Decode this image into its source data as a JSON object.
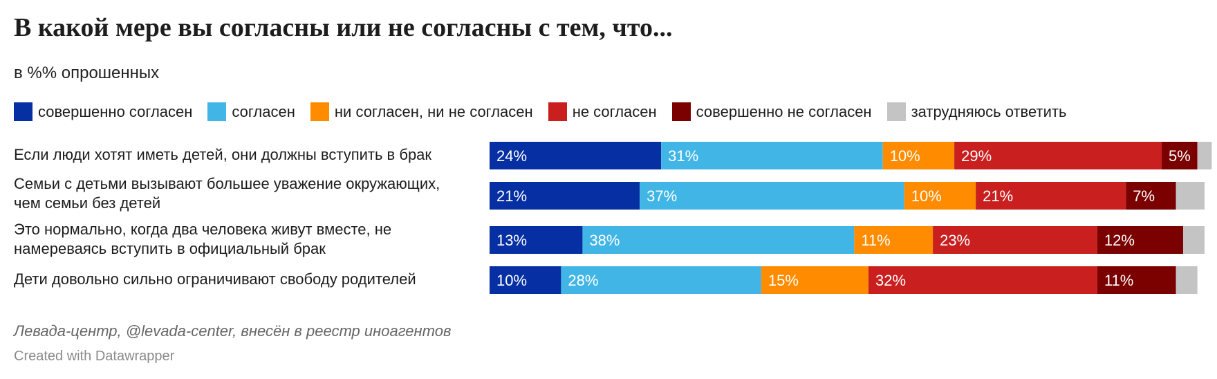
{
  "title": "В какой мере вы согласны или не согласны с тем, что...",
  "subtitle": "в %% опрошенных",
  "source": "Левада-центр, @levada-center, внесён в реестр иноагентов",
  "credit": "Created with Datawrapper",
  "chart_data": {
    "type": "bar",
    "orientation": "horizontal",
    "stacked": true,
    "unit": "%",
    "xlim": [
      0,
      100
    ],
    "legend_position": "top",
    "categories": [
      "Если люди хотят иметь детей, они должны вступить в брак",
      "Семьи с детьми вызывают большее уважение окружающих, чем семьи без детей",
      "Это нормально, когда два человека живут вместе, не намереваясь вступить в официальный брак",
      "Дети довольно сильно ограничивают свободу родителей"
    ],
    "category_lines": [
      [
        "Если люди хотят иметь детей, они должны вступить в брак"
      ],
      [
        "Семьи с детьми вызывают большее уважение окружающих,",
        "чем семьи без детей"
      ],
      [
        "Это нормально, когда два человека живут вместе, не",
        "намереваясь вступить в официальный брак"
      ],
      [
        "Дети довольно сильно ограничивают свободу родителей"
      ]
    ],
    "series": [
      {
        "name": "совершенно согласен",
        "color": "#052fa3",
        "values": [
          24,
          21,
          13,
          10
        ]
      },
      {
        "name": "согласен",
        "color": "#41b6e6",
        "values": [
          31,
          37,
          38,
          28
        ]
      },
      {
        "name": "ни согласен, ни не согласен",
        "color": "#ff8c00",
        "values": [
          10,
          10,
          11,
          15
        ]
      },
      {
        "name": "не согласен",
        "color": "#c91f1f",
        "values": [
          29,
          21,
          23,
          32
        ]
      },
      {
        "name": "совершенно не согласен",
        "color": "#7b0000",
        "values": [
          5,
          7,
          12,
          11
        ]
      },
      {
        "name": "затрудняюсь ответить",
        "color": "#c4c4c4",
        "values": [
          2,
          4,
          3,
          3
        ]
      }
    ],
    "data_labels": [
      [
        "24%",
        "31%",
        "10%",
        "29%",
        "5%",
        ""
      ],
      [
        "21%",
        "37%",
        "10%",
        "21%",
        "7%",
        ""
      ],
      [
        "13%",
        "38%",
        "11%",
        "23%",
        "12%",
        ""
      ],
      [
        "10%",
        "28%",
        "15%",
        "32%",
        "11%",
        ""
      ]
    ]
  }
}
